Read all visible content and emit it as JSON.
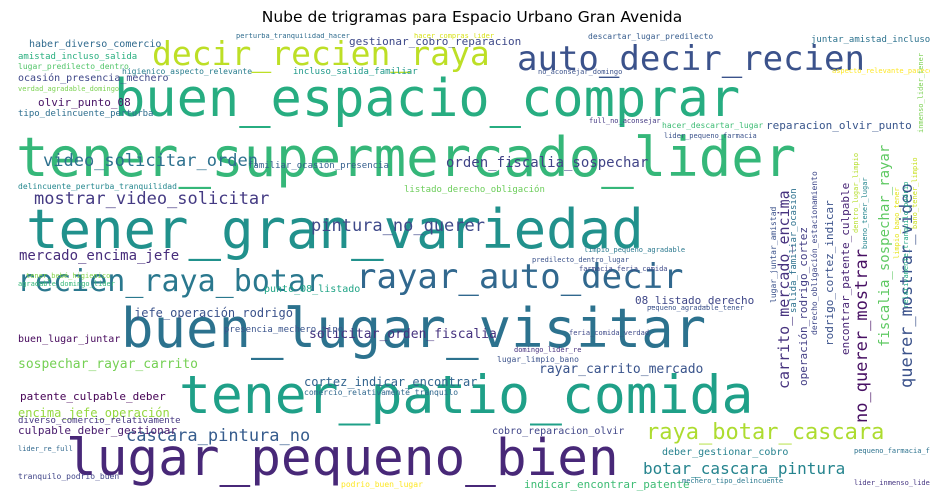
{
  "title": "Nube de trigramas para Espacio Urbano Gran Avenida",
  "words": [
    {
      "text": "tener_supermercado_lider",
      "color": "#35b779"
    },
    {
      "text": "buen_espacio_comprar",
      "color": "#27ad81"
    },
    {
      "text": "tener_gran_variedad",
      "color": "#21918c"
    },
    {
      "text": "buen_lugar_visitar",
      "color": "#2c728e"
    },
    {
      "text": "tener_patio_comida",
      "color": "#1fa088"
    },
    {
      "text": "lugar_pequeno_bien",
      "color": "#482878"
    },
    {
      "text": "decir_recien_raya",
      "color": "#bddf26"
    },
    {
      "text": "auto_decir_recien",
      "color": "#3b528b"
    },
    {
      "text": "rayar_auto_decir",
      "color": "#31688e"
    },
    {
      "text": "recien_raya_botar",
      "color": "#2a788e"
    },
    {
      "text": "raya_botar_cascara",
      "color": "#addc30"
    },
    {
      "text": "video_solicitar_orden",
      "color": "#2d708e"
    },
    {
      "text": "mostrar_video_solicitar",
      "color": "#443a83"
    },
    {
      "text": "pintura_no_querer",
      "color": "#3e4989"
    },
    {
      "text": "cascara_pintura_no",
      "color": "#365c8d"
    },
    {
      "text": "botar_cascara_pintura",
      "color": "#25848e"
    },
    {
      "text": "mercado_encima_jefe",
      "color": "#472d7b"
    },
    {
      "text": "orden_fiscalia_sospechar",
      "color": "#414487"
    },
    {
      "text": "solicitar_orden_fiscalia",
      "color": "#46337f"
    },
    {
      "text": "rayar_carrito_mercado",
      "color": "#3a548c"
    },
    {
      "text": "sospechar_rayar_carrito",
      "color": "#75d054"
    },
    {
      "text": "encima_jefe_operación",
      "color": "#95d840"
    },
    {
      "text": "jefe_operación_rodrigo",
      "color": "#3b528b"
    },
    {
      "text": "cortez_indicar_encontrar",
      "color": "#32648e"
    },
    {
      "text": "deber_gestionar_cobro",
      "color": "#26828e"
    },
    {
      "text": "indicar_encontrar_patente",
      "color": "#3dbc74"
    },
    {
      "text": "patente_culpable_deber",
      "color": "#440154"
    },
    {
      "text": "culpable_deber_gestionar",
      "color": "#481b6d"
    },
    {
      "text": "cobro_reparacion_olvir",
      "color": "#404688"
    },
    {
      "text": "buen_lugar_juntar",
      "color": "#46085c"
    },
    {
      "text": "gestionar_cobro_reparacion",
      "color": "#3e4989"
    },
    {
      "text": "haber_diverso_comercio",
      "color": "#306a8e"
    },
    {
      "text": "olvir_punto_08",
      "color": "#471365"
    },
    {
      "text": "reparacion_olvir_punto",
      "color": "#39568c"
    },
    {
      "text": "08_listado_derecho",
      "color": "#3f4788"
    },
    {
      "text": "punto_08_listado",
      "color": "#20a486"
    },
    {
      "text": "diverso_comercio_relativamente",
      "color": "#453781"
    },
    {
      "text": "carrito_mercado_encima",
      "color": "#46327e"
    },
    {
      "text": "no_querer_mostrar",
      "color": "#471063"
    },
    {
      "text": "querer_mostrar_video",
      "color": "#3b528b"
    },
    {
      "text": "fiscalia_sospechar_rayar",
      "color": "#5ec962"
    },
    {
      "text": "rodrigo_cortez_indicar",
      "color": "#3b528b"
    },
    {
      "text": "operación_rodrigo_cortez",
      "color": "#433e85"
    },
    {
      "text": "encontrar_patente_culpable",
      "color": "#482475"
    },
    {
      "text": "amistad_incluso_salida",
      "color": "#29af7f"
    },
    {
      "text": "lugar_predilecto_dentro",
      "color": "#52c569"
    },
    {
      "text": "ocasión_presencia_mechero",
      "color": "#3f4788"
    },
    {
      "text": "tipo_delincuente_perturba",
      "color": "#2e6e8e"
    },
    {
      "text": "delincuente_perturba_tranquilidad",
      "color": "#24878e"
    },
    {
      "text": "juntar_amistad_incluso",
      "color": "#2c728e"
    },
    {
      "text": "descartar_lugar_predilecto",
      "color": "#365c8d"
    },
    {
      "text": "perturba_tranquilidad_hacer",
      "color": "#2f6c8e"
    },
    {
      "text": "higienico_aspecto_relevante",
      "color": "#287d8e"
    },
    {
      "text": "incluso_salida_familiar",
      "color": "#1f998a"
    },
    {
      "text": "familiar_ocasión_presencia",
      "color": "#355f8d"
    },
    {
      "text": "hacer_descartar_lugar",
      "color": "#3dbc74"
    },
    {
      "text": "presencia_mechero_tipo",
      "color": "#3a548c"
    },
    {
      "text": "listado_derecho_obligación",
      "color": "#6ccd5a"
    },
    {
      "text": "derecho_obligación_estacionamiento",
      "color": "#3f4889"
    },
    {
      "text": "salida_familiar_ocasión",
      "color": "#2d718e"
    },
    {
      "text": "lugar_juntar_amistad",
      "color": "#3b528b"
    },
    {
      "text": "comercio_relativamente_tranquilo",
      "color": "#31688e"
    },
    {
      "text": "tranquilo_podrio_buen",
      "color": "#404588"
    },
    {
      "text": "mechero_tipo_delincuente",
      "color": "#2a788e"
    },
    {
      "text": "lider_inmenso_lider",
      "color": "#453581"
    },
    {
      "text": "lugar_limpio_bano",
      "color": "#3b528b"
    },
    {
      "text": "domingo_lider_re",
      "color": "#46307e"
    },
    {
      "text": "relativamente_tranquilo_podrio",
      "color": "#22a884"
    },
    {
      "text": "predilecto_dentro_lugar",
      "color": "#3b528b"
    },
    {
      "text": "agradable_domingo_lider",
      "color": "#35b779"
    },
    {
      "text": "tener_bebé_higienico",
      "color": "#84d44b"
    },
    {
      "text": "full_no_aconsejar",
      "color": "#443983"
    },
    {
      "text": "no_aconsejar_domingo",
      "color": "#3b528b"
    },
    {
      "text": "aspecto_relevante_parecer",
      "color": "#fde725"
    },
    {
      "text": "lider_pequeno_farmacia",
      "color": "#3b528b"
    },
    {
      "text": "limpio_pequeno_agradable",
      "color": "#2a788e"
    },
    {
      "text": "farmacia_feria_comida",
      "color": "#3e4989"
    },
    {
      "text": "pequeno_agradable_tener",
      "color": "#3b528b"
    },
    {
      "text": "lider_re_full",
      "color": "#31688e"
    },
    {
      "text": "podrio_buen_lugar",
      "color": "#fde725"
    },
    {
      "text": "verdad_agradable_domingo",
      "color": "#7ad151"
    },
    {
      "text": "dentro_lugar_limpio",
      "color": "#b5de2b"
    },
    {
      "text": "bueno_tener_lugar",
      "color": "#24868e"
    },
    {
      "text": "inmenso_lider_tener",
      "color": "#7ad151"
    },
    {
      "text": "pequeno_farmacia_feria",
      "color": "#2c728e"
    },
    {
      "text": "feria_comida_verdad",
      "color": "#3e4989"
    },
    {
      "text": "limpio_bano_tener",
      "color": "#e5e419"
    },
    {
      "text": "bano_tener_limpio",
      "color": "#c8e020"
    },
    {
      "text": "hacer_compras_lider",
      "color": "#d8e219"
    }
  ]
}
